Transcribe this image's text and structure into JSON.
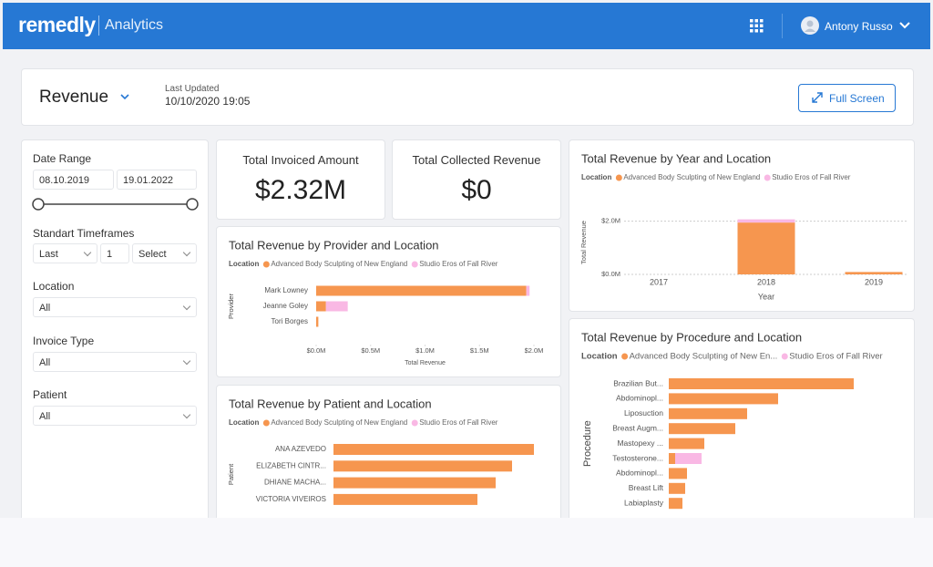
{
  "header": {
    "brand": "remedly",
    "product": "Analytics",
    "user": "Antony Russo"
  },
  "page": {
    "title": "Revenue",
    "last_updated_label": "Last Updated",
    "last_updated": "10/10/2020 19:05",
    "full_screen": "Full Screen"
  },
  "filters": {
    "date_range": {
      "label": "Date Range",
      "from": "08.10.2019",
      "to": "19.01.2022"
    },
    "timeframes": {
      "label": "Standart Timeframes",
      "unit": "Last",
      "count": "1",
      "period": "Select"
    },
    "location": {
      "label": "Location",
      "value": "All"
    },
    "invoice_type": {
      "label": "Invoice Type",
      "value": "All"
    },
    "patient": {
      "label": "Patient",
      "value": "All"
    }
  },
  "kpis": [
    {
      "label": "Total Invoiced Amount",
      "value": "$2.32M"
    },
    {
      "label": "Total Collected Revenue",
      "value": "$0"
    }
  ],
  "chart_data": [
    {
      "type": "bar",
      "orientation": "horizontal",
      "stacked": true,
      "title": "Total Revenue by Provider and Location",
      "legend_title": "Location",
      "x_label": "Total Revenue",
      "y_label": "Provider",
      "categories": [
        "Mark Lowney",
        "Jeanne Goley",
        "Tori Borges"
      ],
      "series": [
        {
          "name": "Advanced Body Sculpting of New England",
          "color": "#f6964f",
          "values": [
            1.93,
            0.09,
            0.02
          ]
        },
        {
          "name": "Studio Eros of Fall River",
          "color": "#f9b8e4",
          "values": [
            0.03,
            0.2,
            0
          ]
        }
      ],
      "xlim": [
        0,
        2
      ],
      "xticks": [
        {
          "value": 0,
          "label": "$0.0M"
        },
        {
          "value": 0.5,
          "label": "$0.5M"
        },
        {
          "value": 1,
          "label": "$1.0M"
        },
        {
          "value": 1.5,
          "label": "$1.5M"
        },
        {
          "value": 2,
          "label": "$2.0M"
        }
      ]
    },
    {
      "type": "bar",
      "orientation": "horizontal",
      "stacked": true,
      "title": "Total Revenue by Patient and Location",
      "legend_title": "Location",
      "y_label": "Patient",
      "categories": [
        "ANA AZEVEDO",
        "ELIZABETH CINTR...",
        "DHIANE MACHA...",
        "VICTORIA VIVEIROS"
      ],
      "series": [
        {
          "name": "Advanced Body Sculpting of New England",
          "color": "#f6964f",
          "values": [
            220,
            196,
            178,
            158
          ]
        },
        {
          "name": "Studio Eros of Fall River",
          "color": "#f9b8e4",
          "values": [
            0,
            0,
            0,
            0
          ]
        }
      ],
      "xlim": [
        0,
        230
      ]
    },
    {
      "type": "bar",
      "orientation": "vertical",
      "stacked": true,
      "title": "Total Revenue by Year and Location",
      "legend_title": "Location",
      "x_label": "Year",
      "y_label": "Total Revenue",
      "categories": [
        "2017",
        "2018",
        "2019"
      ],
      "series": [
        {
          "name": "Advanced Body Sculpting of New England",
          "color": "#f6964f",
          "values": [
            0,
            1.95,
            0.09
          ]
        },
        {
          "name": "Studio Eros of Fall River",
          "color": "#f9b8e4",
          "values": [
            0,
            0.12,
            0
          ]
        }
      ],
      "ylim": [
        0,
        2.4
      ],
      "yticks": [
        {
          "value": 0,
          "label": "$0.0M"
        },
        {
          "value": 2,
          "label": "$2.0M"
        }
      ],
      "grid": true
    },
    {
      "type": "bar",
      "orientation": "horizontal",
      "stacked": true,
      "title": "Total Revenue by Procedure and Location",
      "legend_title": "Location",
      "y_label": "Procedure",
      "categories": [
        "Brazilian But...",
        "Abdominopl...",
        "Liposuction",
        "Breast Augm...",
        "Mastopexy ...",
        "Testosterone...",
        "Abdominopl...",
        "Breast Lift",
        "Labiaplasty"
      ],
      "series": [
        {
          "name": "Advanced Body Sculpting of New En...",
          "color": "#f6964f",
          "values": [
            203,
            120,
            86,
            73,
            39,
            7,
            20,
            18,
            15
          ]
        },
        {
          "name": "Studio Eros of Fall River",
          "color": "#f9b8e4",
          "values": [
            0,
            0,
            0,
            0,
            0,
            29,
            0,
            0,
            0
          ]
        }
      ],
      "xlim": [
        0,
        260
      ]
    }
  ]
}
